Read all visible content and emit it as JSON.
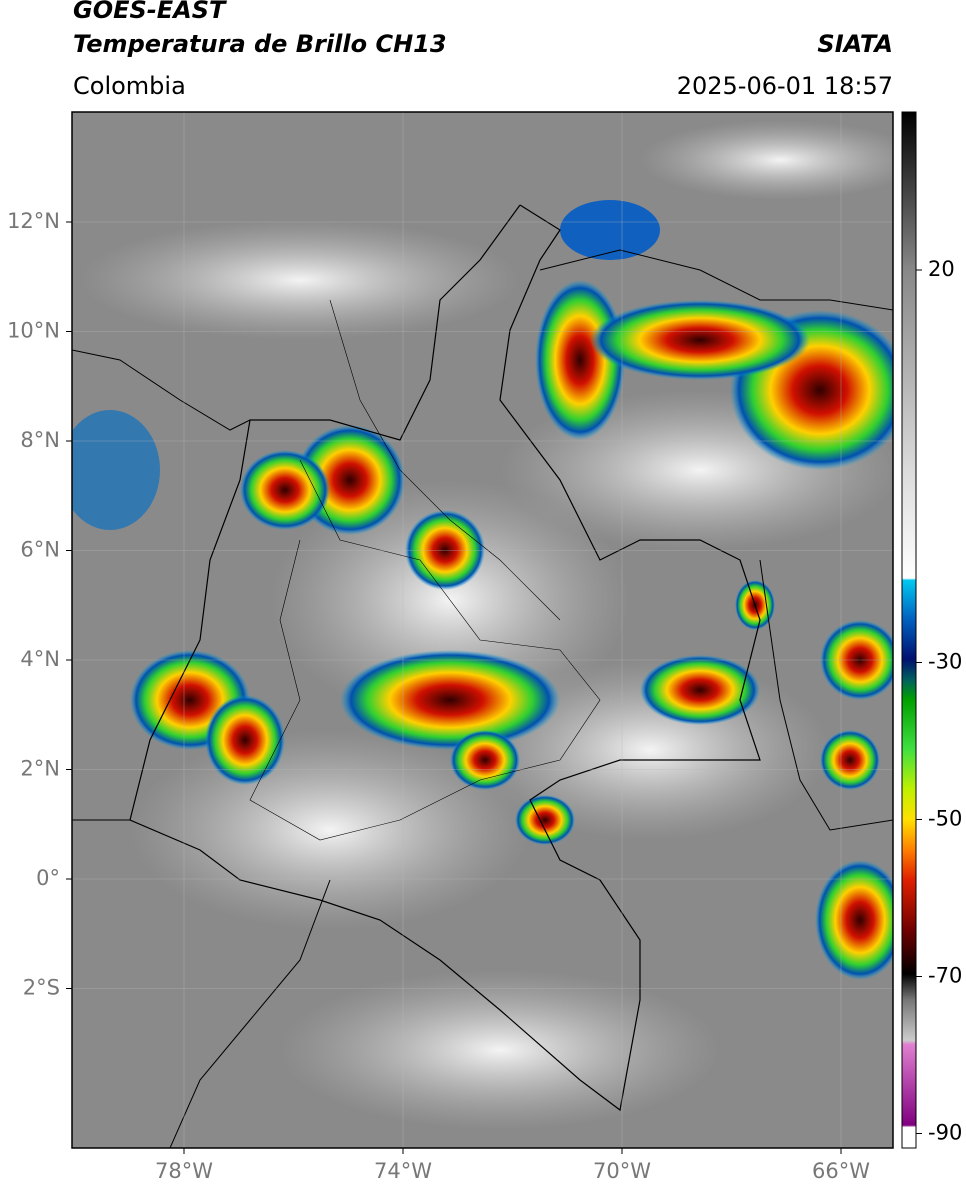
{
  "header": {
    "title": "GOES-EAST",
    "subtitle": "Temperatura de Brillo CH13",
    "region": "Colombia",
    "source": "SIATA",
    "timestamp": "2025-06-01 18:57"
  },
  "map": {
    "lat_ticks": [
      "12°N",
      "10°N",
      "8°N",
      "6°N",
      "4°N",
      "2°N",
      "0°",
      "2°S"
    ],
    "lon_ticks": [
      "78°W",
      "74°W",
      "70°W",
      "66°W"
    ]
  },
  "colorbar": {
    "ticks": [
      20,
      -30,
      -50,
      -70,
      -90
    ]
  }
}
